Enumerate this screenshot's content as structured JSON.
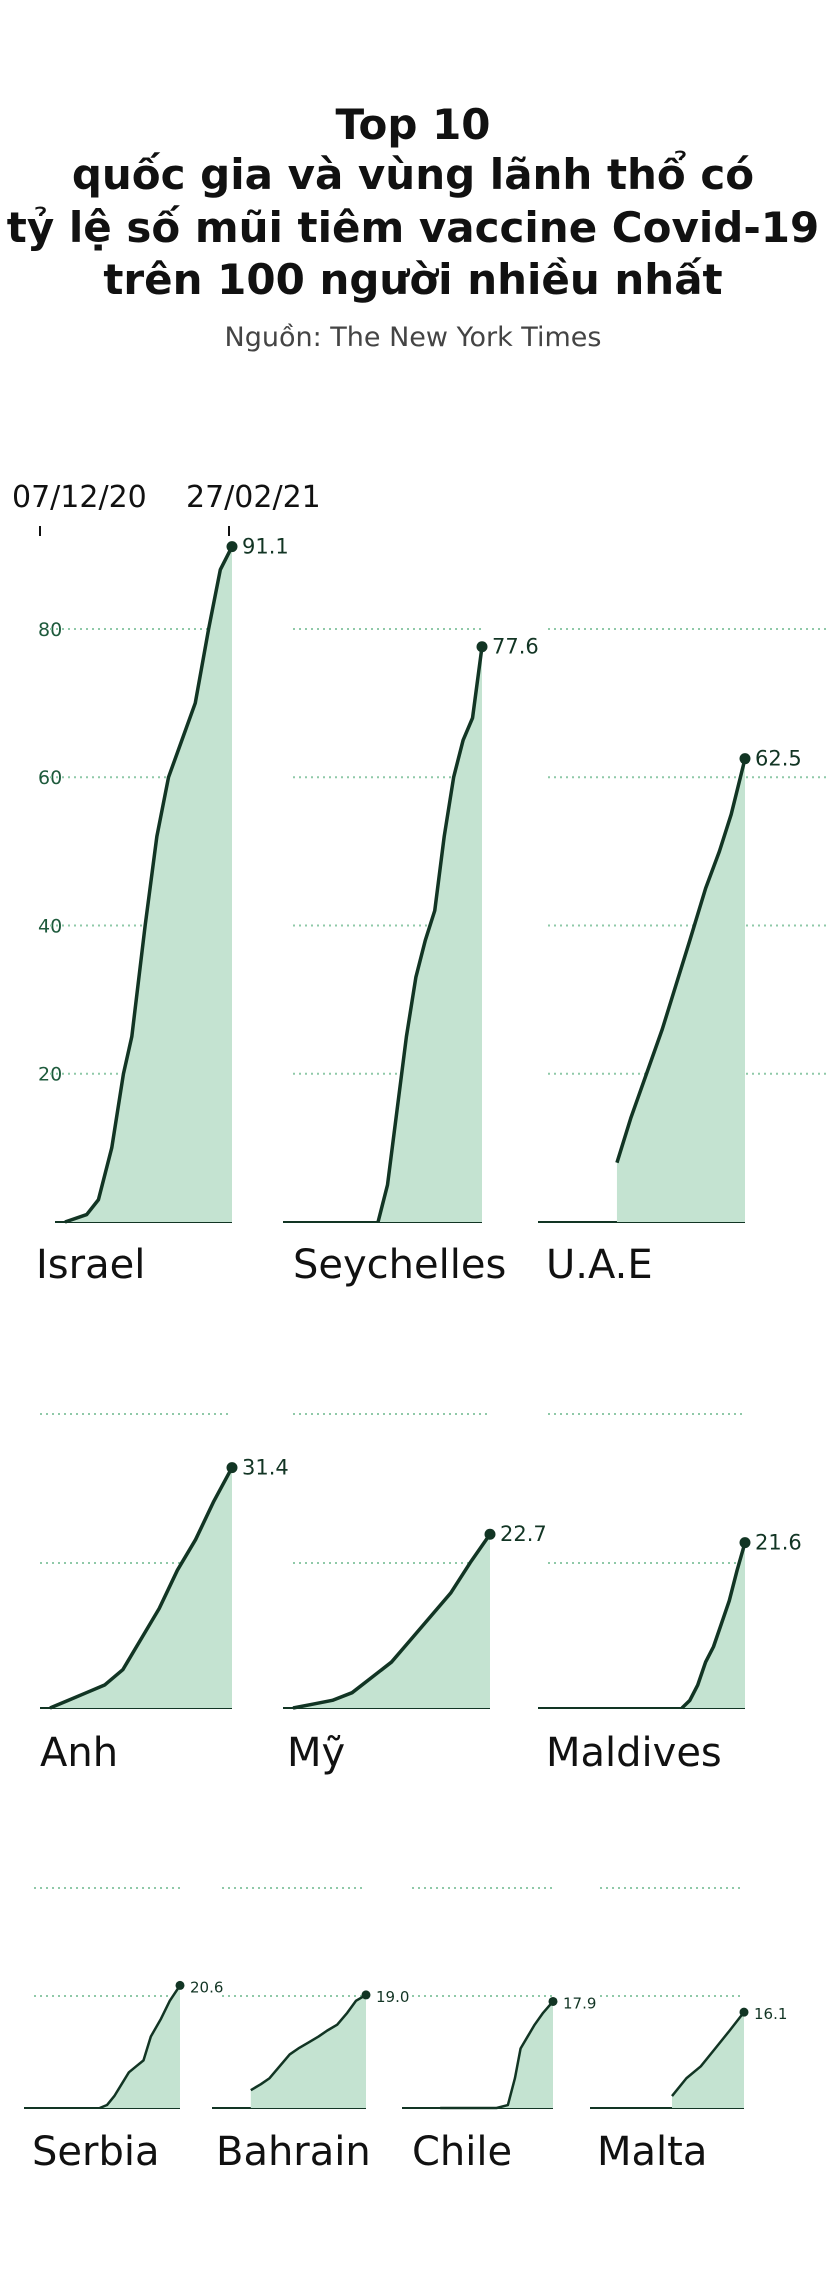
{
  "title_lines": [
    "Top 10",
    "quốc gia và vùng lãnh thổ có",
    "tỷ lệ số mũi tiêm vaccine Covid-19",
    "trên 100 người nhiều nhất"
  ],
  "source": "Nguồn: The New York Times",
  "colors": {
    "line": "#123524",
    "fill": "#c4e3d1",
    "grid": "#8fc9a8",
    "axis_text": "#1e5a3c",
    "label": "#111111"
  },
  "chart_data": {
    "type": "area",
    "x_start_label": "07/12/20",
    "x_end_label": "27/02/21",
    "y_ticks": [
      20,
      40,
      60,
      80
    ],
    "grid": true,
    "series": [
      {
        "name": "Israel",
        "end_value": 91.1,
        "end_label": "91.1",
        "ylim": [
          0,
          92
        ],
        "x": [
          0,
          0.13,
          0.2,
          0.28,
          0.35,
          0.4,
          0.48,
          0.55,
          0.62,
          0.7,
          0.78,
          0.86,
          0.93,
          1
        ],
        "values": [
          0,
          1,
          3,
          10,
          20,
          25,
          40,
          52,
          60,
          65,
          70,
          80,
          88,
          91.1
        ]
      },
      {
        "name": "Seychelles",
        "end_value": 77.6,
        "end_label": "77.6",
        "ylim": [
          0,
          92
        ],
        "x": [
          0.45,
          0.5,
          0.55,
          0.6,
          0.65,
          0.7,
          0.75,
          0.8,
          0.85,
          0.9,
          0.95,
          1
        ],
        "values": [
          0,
          5,
          15,
          25,
          33,
          38,
          42,
          52,
          60,
          65,
          68,
          77.6
        ]
      },
      {
        "name": "U.A.E",
        "end_value": 62.5,
        "end_label": "62.5",
        "ylim": [
          0,
          92
        ],
        "x": [
          0.35,
          0.42,
          0.5,
          0.58,
          0.65,
          0.72,
          0.8,
          0.87,
          0.93,
          1
        ],
        "values": [
          8,
          14,
          20,
          26,
          32,
          38,
          45,
          50,
          55,
          62.5
        ]
      },
      {
        "name": "Anh",
        "end_value": 31.4,
        "end_label": "31.4",
        "ylim": [
          0,
          32
        ],
        "x": [
          0,
          0.1,
          0.2,
          0.3,
          0.4,
          0.5,
          0.6,
          0.7,
          0.8,
          0.9,
          1
        ],
        "values": [
          0,
          1,
          2,
          3,
          5,
          9,
          13,
          18,
          22,
          27,
          31.4
        ]
      },
      {
        "name": "Mỹ",
        "end_value": 22.7,
        "end_label": "22.7",
        "ylim": [
          0,
          32
        ],
        "x": [
          0,
          0.1,
          0.2,
          0.3,
          0.4,
          0.5,
          0.6,
          0.7,
          0.8,
          0.9,
          1
        ],
        "values": [
          0,
          0.5,
          1,
          2,
          4,
          6,
          9,
          12,
          15,
          19,
          22.7
        ]
      },
      {
        "name": "Maldives",
        "end_value": 21.6,
        "end_label": "21.6",
        "ylim": [
          0,
          32
        ],
        "x": [
          0.68,
          0.72,
          0.76,
          0.8,
          0.84,
          0.88,
          0.92,
          0.96,
          1
        ],
        "values": [
          0,
          1,
          3,
          6,
          8,
          11,
          14,
          18,
          21.6
        ]
      },
      {
        "name": "Serbia",
        "end_value": 20.6,
        "end_label": "20.6",
        "ylim": [
          0,
          21
        ],
        "x": [
          0.45,
          0.5,
          0.55,
          0.6,
          0.65,
          0.7,
          0.75,
          0.8,
          0.87,
          0.93,
          1
        ],
        "values": [
          0,
          0.5,
          2,
          4,
          6,
          7,
          8,
          12,
          15,
          18,
          20.6
        ]
      },
      {
        "name": "Bahrain",
        "end_value": 19.0,
        "end_label": "19.0",
        "ylim": [
          0,
          21
        ],
        "x": [
          0.2,
          0.27,
          0.33,
          0.4,
          0.47,
          0.53,
          0.6,
          0.67,
          0.73,
          0.8,
          0.87,
          0.93,
          1
        ],
        "values": [
          3,
          4,
          5,
          7,
          9,
          10,
          11,
          12,
          13,
          14,
          16,
          18,
          19
        ]
      },
      {
        "name": "Chile",
        "end_value": 17.9,
        "end_label": "17.9",
        "ylim": [
          0,
          21
        ],
        "x": [
          0.2,
          0.3,
          0.4,
          0.5,
          0.6,
          0.68,
          0.73,
          0.77,
          0.82,
          0.87,
          0.93,
          1
        ],
        "values": [
          0,
          0,
          0,
          0,
          0,
          0.5,
          5,
          10,
          12,
          14,
          16,
          17.9
        ]
      },
      {
        "name": "Malta",
        "end_value": 16.1,
        "end_label": "16.1",
        "ylim": [
          0,
          21
        ],
        "x": [
          0.5,
          0.6,
          0.7,
          0.8,
          0.9,
          1
        ],
        "values": [
          2,
          5,
          7,
          10,
          13,
          16.1
        ]
      }
    ]
  }
}
